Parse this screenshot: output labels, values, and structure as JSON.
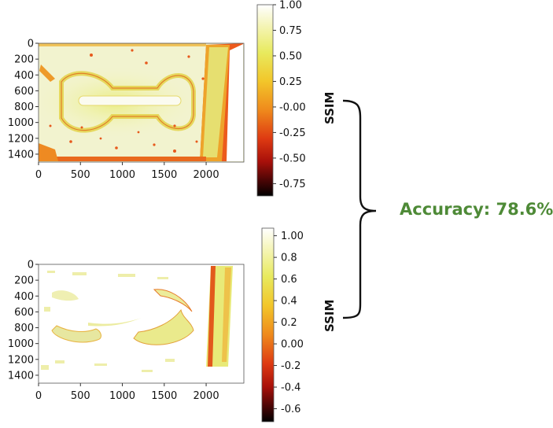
{
  "chart_data": [
    {
      "type": "heatmap",
      "title": "",
      "xlabel": "",
      "ylabel": "",
      "x_ticks": [
        "0",
        "500",
        "1000",
        "1500",
        "2000"
      ],
      "x_tick_values": [
        0,
        500,
        1000,
        1500,
        2000
      ],
      "y_ticks": [
        "0",
        "200",
        "400",
        "600",
        "800",
        "1000",
        "1200",
        "1400"
      ],
      "y_tick_values": [
        0,
        200,
        400,
        600,
        800,
        1000,
        1200,
        1400
      ],
      "xlim": [
        0,
        2450
      ],
      "ylim": [
        1500,
        0
      ],
      "colorbar": {
        "label": "SSIM",
        "ticks": [
          "1.00",
          "0.75",
          "0.50",
          "0.25",
          "-0.00",
          "-0.25",
          "-0.50",
          "-0.75"
        ],
        "tick_values": [
          1.0,
          0.75,
          0.5,
          0.25,
          0.0,
          -0.25,
          -0.5,
          -0.75
        ],
        "range": [
          -0.87,
          1.0
        ],
        "colormap": [
          "#ffffff",
          "#f4f4b0",
          "#e8ea5e",
          "#f2c62a",
          "#ef8a1c",
          "#de3a12",
          "#a8100a",
          "#4a0505",
          "#000000"
        ]
      }
    },
    {
      "type": "heatmap",
      "title": "",
      "xlabel": "",
      "ylabel": "",
      "x_ticks": [
        "0",
        "500",
        "1000",
        "1500",
        "2000"
      ],
      "x_tick_values": [
        0,
        500,
        1000,
        1500,
        2000
      ],
      "y_ticks": [
        "0",
        "200",
        "400",
        "600",
        "800",
        "1000",
        "1200",
        "1400"
      ],
      "y_tick_values": [
        0,
        200,
        400,
        600,
        800,
        1000,
        1200,
        1400
      ],
      "xlim": [
        0,
        2450
      ],
      "ylim": [
        1500,
        0
      ],
      "colorbar": {
        "label": "SSIM",
        "ticks": [
          "1.00",
          "0.8",
          "0.6",
          "0.4",
          "0.2",
          "0.00",
          "-0.2",
          "-0.4",
          "-0.6"
        ],
        "tick_values": [
          1.0,
          0.8,
          0.6,
          0.4,
          0.2,
          0.0,
          -0.2,
          -0.4,
          -0.6
        ],
        "range": [
          -0.72,
          1.07
        ],
        "colormap": [
          "#ffffff",
          "#f4f4b0",
          "#e8ea5e",
          "#f2c62a",
          "#ef8a1c",
          "#de3a12",
          "#a8100a",
          "#4a0505",
          "#000000"
        ]
      }
    }
  ],
  "annotation": {
    "text": "Accuracy: 78.6%",
    "color": "#4e8a37"
  }
}
